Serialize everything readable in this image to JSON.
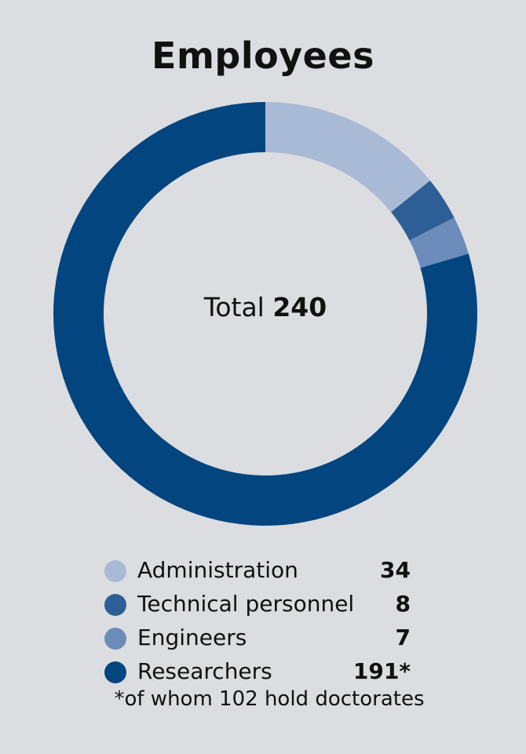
{
  "chart_data": {
    "type": "pie",
    "title": "Employees",
    "center_label": {
      "prefix": "Total",
      "value": "240"
    },
    "series": [
      {
        "name": "Administration",
        "value": 34,
        "display": "34",
        "color": "#a9bad6"
      },
      {
        "name": "Technical personnel",
        "value": 8,
        "display": "8",
        "color": "#2d5f96"
      },
      {
        "name": "Engineers",
        "value": 7,
        "display": "7",
        "color": "#6b8cba"
      },
      {
        "name": "Researchers",
        "value": 191,
        "display": "191*",
        "color": "#02457f"
      }
    ],
    "footnote": "*of whom 102 hold doctorates"
  }
}
